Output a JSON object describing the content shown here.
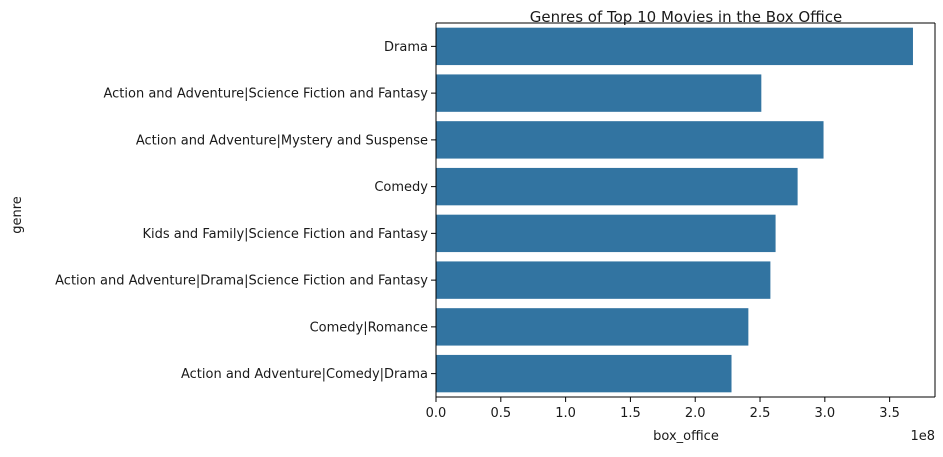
{
  "chart_data": {
    "type": "bar",
    "orientation": "horizontal",
    "title": "Genres of Top 10 Movies in the Box Office",
    "xlabel": "box_office",
    "ylabel": "genre",
    "x_offset_text": "1e8",
    "xlim": [
      0,
      385000000
    ],
    "xticks": [
      0,
      50000000,
      100000000,
      150000000,
      200000000,
      250000000,
      300000000,
      350000000
    ],
    "xtick_labels": [
      "0.0",
      "0.5",
      "1.0",
      "1.5",
      "2.0",
      "2.5",
      "3.0",
      "3.5"
    ],
    "grid": false,
    "bar_color": "#3274a1",
    "categories": [
      "Drama",
      "Action and Adventure|Science Fiction and Fantasy",
      "Action and Adventure|Mystery and Suspense",
      "Comedy",
      "Kids and Family|Science Fiction and Fantasy",
      "Action and Adventure|Drama|Science Fiction and Fantasy",
      "Comedy|Romance",
      "Action and Adventure|Comedy|Drama"
    ],
    "values": [
      368000000,
      251000000,
      299000000,
      279000000,
      262000000,
      258000000,
      241000000,
      228000000
    ]
  }
}
